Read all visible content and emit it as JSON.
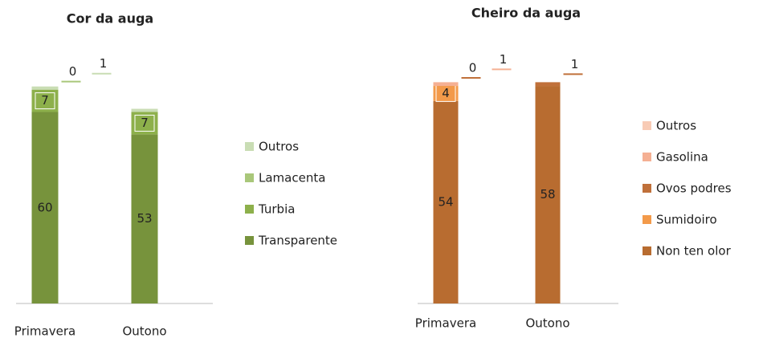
{
  "chart_data": [
    {
      "type": "stacked_bar",
      "title": "Cor da auga",
      "categories": [
        "Primavera",
        "Outono"
      ],
      "ylim": [
        0,
        80
      ],
      "series": [
        {
          "name": "Transparente",
          "color": "#77933c",
          "values": [
            60,
            53
          ]
        },
        {
          "name": "Turbia",
          "color": "#8db04b",
          "values": [
            7,
            7
          ]
        },
        {
          "name": "Lamacenta",
          "color": "#a9c77a",
          "values": [
            0,
            0
          ],
          "value_labels": [
            "0",
            null
          ]
        },
        {
          "name": "Outros",
          "color": "#c9ddb4",
          "values": [
            1,
            1
          ],
          "value_labels": [
            "1",
            null
          ]
        }
      ]
    },
    {
      "type": "stacked_bar",
      "title": "Cheiro da auga",
      "categories": [
        "Primavera",
        "Outono"
      ],
      "ylim": [
        0,
        70
      ],
      "series": [
        {
          "name": "Non ten olor",
          "color": "#b86c30",
          "values": [
            54,
            58
          ]
        },
        {
          "name": "Sumidoiro",
          "color": "#f39a4a",
          "values": [
            4,
            0
          ],
          "value_labels": [
            "4",
            null
          ]
        },
        {
          "name": "Ovos podres",
          "color": "#c0703a",
          "values": [
            0,
            1
          ],
          "value_labels": [
            "0",
            "1"
          ]
        },
        {
          "name": "Gasolina",
          "color": "#f5b093",
          "values": [
            1,
            0
          ],
          "value_labels": [
            "1",
            null
          ]
        },
        {
          "name": "Outros",
          "color": "#f8cbb5",
          "values": [
            0,
            0
          ],
          "value_labels": [
            null,
            null
          ]
        }
      ]
    }
  ]
}
